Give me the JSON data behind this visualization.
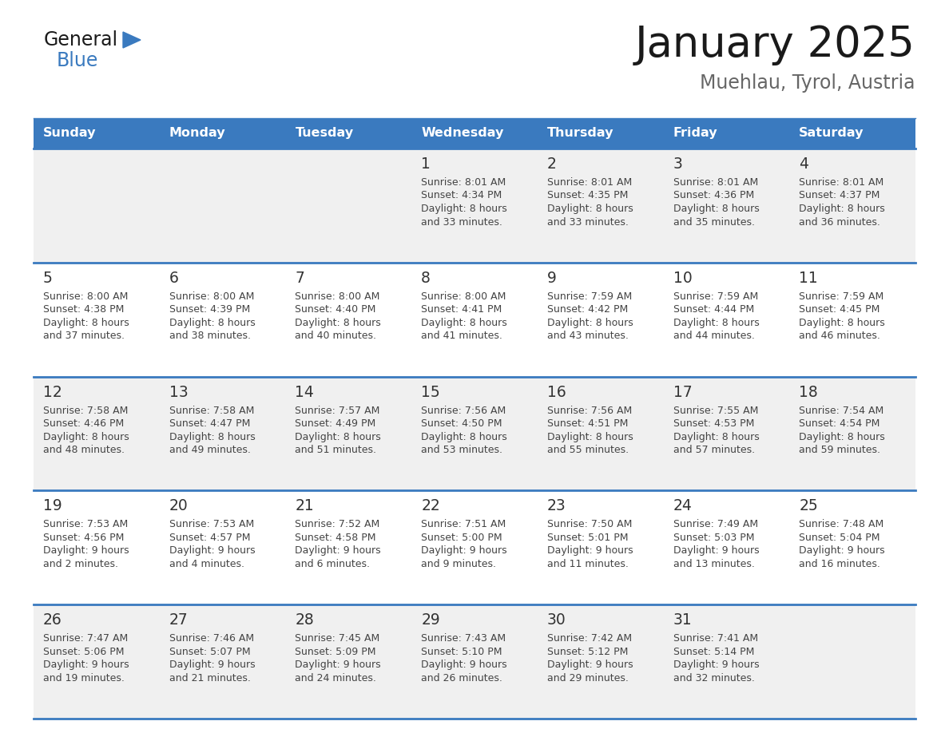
{
  "title": "January 2025",
  "subtitle": "Muehlau, Tyrol, Austria",
  "days_of_week": [
    "Sunday",
    "Monday",
    "Tuesday",
    "Wednesday",
    "Thursday",
    "Friday",
    "Saturday"
  ],
  "header_bg": "#3a7abf",
  "header_text": "#ffffff",
  "row_bg_odd": "#f0f0f0",
  "row_bg_even": "#ffffff",
  "cell_text_color": "#444444",
  "day_num_color": "#333333",
  "divider_color": "#3a7abf",
  "title_color": "#1a1a1a",
  "subtitle_color": "#666666",
  "logo_general_color": "#1a1a1a",
  "logo_blue_color": "#3a7abf",
  "calendar_data": [
    [
      null,
      null,
      null,
      {
        "day": 1,
        "sunrise": "8:01 AM",
        "sunset": "4:34 PM",
        "daylight": "8 hours and 33 minutes."
      },
      {
        "day": 2,
        "sunrise": "8:01 AM",
        "sunset": "4:35 PM",
        "daylight": "8 hours and 33 minutes."
      },
      {
        "day": 3,
        "sunrise": "8:01 AM",
        "sunset": "4:36 PM",
        "daylight": "8 hours and 35 minutes."
      },
      {
        "day": 4,
        "sunrise": "8:01 AM",
        "sunset": "4:37 PM",
        "daylight": "8 hours and 36 minutes."
      }
    ],
    [
      {
        "day": 5,
        "sunrise": "8:00 AM",
        "sunset": "4:38 PM",
        "daylight": "8 hours and 37 minutes."
      },
      {
        "day": 6,
        "sunrise": "8:00 AM",
        "sunset": "4:39 PM",
        "daylight": "8 hours and 38 minutes."
      },
      {
        "day": 7,
        "sunrise": "8:00 AM",
        "sunset": "4:40 PM",
        "daylight": "8 hours and 40 minutes."
      },
      {
        "day": 8,
        "sunrise": "8:00 AM",
        "sunset": "4:41 PM",
        "daylight": "8 hours and 41 minutes."
      },
      {
        "day": 9,
        "sunrise": "7:59 AM",
        "sunset": "4:42 PM",
        "daylight": "8 hours and 43 minutes."
      },
      {
        "day": 10,
        "sunrise": "7:59 AM",
        "sunset": "4:44 PM",
        "daylight": "8 hours and 44 minutes."
      },
      {
        "day": 11,
        "sunrise": "7:59 AM",
        "sunset": "4:45 PM",
        "daylight": "8 hours and 46 minutes."
      }
    ],
    [
      {
        "day": 12,
        "sunrise": "7:58 AM",
        "sunset": "4:46 PM",
        "daylight": "8 hours and 48 minutes."
      },
      {
        "day": 13,
        "sunrise": "7:58 AM",
        "sunset": "4:47 PM",
        "daylight": "8 hours and 49 minutes."
      },
      {
        "day": 14,
        "sunrise": "7:57 AM",
        "sunset": "4:49 PM",
        "daylight": "8 hours and 51 minutes."
      },
      {
        "day": 15,
        "sunrise": "7:56 AM",
        "sunset": "4:50 PM",
        "daylight": "8 hours and 53 minutes."
      },
      {
        "day": 16,
        "sunrise": "7:56 AM",
        "sunset": "4:51 PM",
        "daylight": "8 hours and 55 minutes."
      },
      {
        "day": 17,
        "sunrise": "7:55 AM",
        "sunset": "4:53 PM",
        "daylight": "8 hours and 57 minutes."
      },
      {
        "day": 18,
        "sunrise": "7:54 AM",
        "sunset": "4:54 PM",
        "daylight": "8 hours and 59 minutes."
      }
    ],
    [
      {
        "day": 19,
        "sunrise": "7:53 AM",
        "sunset": "4:56 PM",
        "daylight": "9 hours and 2 minutes."
      },
      {
        "day": 20,
        "sunrise": "7:53 AM",
        "sunset": "4:57 PM",
        "daylight": "9 hours and 4 minutes."
      },
      {
        "day": 21,
        "sunrise": "7:52 AM",
        "sunset": "4:58 PM",
        "daylight": "9 hours and 6 minutes."
      },
      {
        "day": 22,
        "sunrise": "7:51 AM",
        "sunset": "5:00 PM",
        "daylight": "9 hours and 9 minutes."
      },
      {
        "day": 23,
        "sunrise": "7:50 AM",
        "sunset": "5:01 PM",
        "daylight": "9 hours and 11 minutes."
      },
      {
        "day": 24,
        "sunrise": "7:49 AM",
        "sunset": "5:03 PM",
        "daylight": "9 hours and 13 minutes."
      },
      {
        "day": 25,
        "sunrise": "7:48 AM",
        "sunset": "5:04 PM",
        "daylight": "9 hours and 16 minutes."
      }
    ],
    [
      {
        "day": 26,
        "sunrise": "7:47 AM",
        "sunset": "5:06 PM",
        "daylight": "9 hours and 19 minutes."
      },
      {
        "day": 27,
        "sunrise": "7:46 AM",
        "sunset": "5:07 PM",
        "daylight": "9 hours and 21 minutes."
      },
      {
        "day": 28,
        "sunrise": "7:45 AM",
        "sunset": "5:09 PM",
        "daylight": "9 hours and 24 minutes."
      },
      {
        "day": 29,
        "sunrise": "7:43 AM",
        "sunset": "5:10 PM",
        "daylight": "9 hours and 26 minutes."
      },
      {
        "day": 30,
        "sunrise": "7:42 AM",
        "sunset": "5:12 PM",
        "daylight": "9 hours and 29 minutes."
      },
      {
        "day": 31,
        "sunrise": "7:41 AM",
        "sunset": "5:14 PM",
        "daylight": "9 hours and 32 minutes."
      },
      null
    ]
  ]
}
